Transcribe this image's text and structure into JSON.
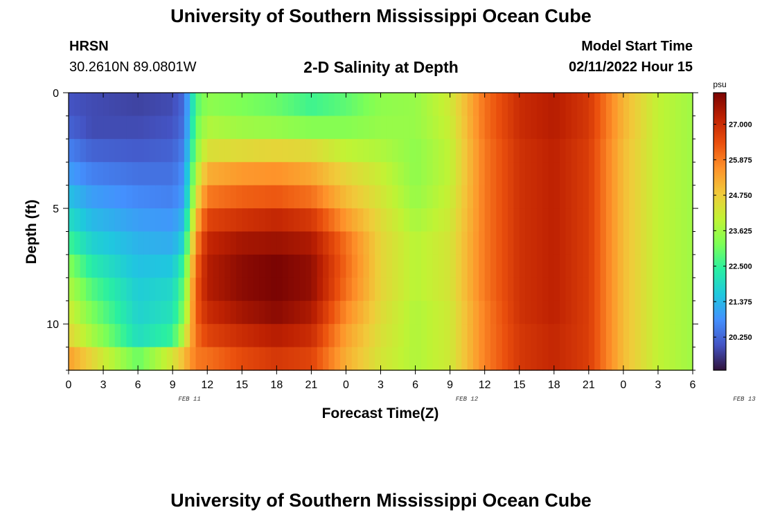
{
  "header": {
    "title": "University of Southern Mississippi Ocean Cube",
    "station": "HRSN",
    "coords": "30.2610N  89.0801W",
    "subtitle": "2-D Salinity at Depth",
    "start_label": "Model Start Time",
    "start_value": "02/11/2022 Hour 15",
    "footer_title": "University of Southern Mississippi Ocean Cube"
  },
  "chart_data": {
    "type": "heatmap",
    "title": "2-D Salinity at Depth",
    "xlabel": "Forecast Time(Z)",
    "ylabel": "Depth (ft)",
    "x_ticks": [
      "0",
      "3",
      "6",
      "9",
      "12",
      "15",
      "18",
      "21",
      "0",
      "3",
      "6",
      "9",
      "12",
      "15",
      "18",
      "21",
      "0",
      "3",
      "6"
    ],
    "x_hours": [
      0,
      54
    ],
    "date_labels": [
      {
        "text": "FEB 11",
        "hour": 11
      },
      {
        "text": "FEB 12",
        "hour": 35
      },
      {
        "text": "FEB 13",
        "hour": 59
      }
    ],
    "date_labels_hour_offset_note": "hour index relative to plot start",
    "y_ticks": [
      0,
      5,
      10
    ],
    "ylim": [
      0,
      12
    ],
    "colorbar": {
      "unit": "psu",
      "ticks": [
        "27.000",
        "25.875",
        "24.750",
        "23.625",
        "22.500",
        "21.375",
        "20.250"
      ],
      "min": 19.2,
      "max": 28.0,
      "colors": [
        "#30123b",
        "#4454c4",
        "#4490fe",
        "#1fc8de",
        "#29efa2",
        "#7dff56",
        "#c1f334",
        "#f1ca3a",
        "#fe922a",
        "#ea4f0d",
        "#be2102",
        "#7a0403"
      ]
    },
    "depth_levels_ft": [
      0.5,
      1.5,
      2.5,
      3.5,
      4.5,
      5.5,
      6.5,
      7.5,
      8.5,
      9.5,
      10.5,
      11.5
    ],
    "hour_profiles": [
      {
        "hour": 0,
        "values": [
          20.0,
          20.2,
          20.6,
          21.0,
          21.5,
          22.0,
          22.6,
          23.3,
          23.8,
          24.2,
          24.6,
          25.4
        ]
      },
      {
        "hour": 2,
        "values": [
          19.9,
          19.9,
          20.2,
          20.6,
          21.0,
          21.4,
          21.8,
          22.3,
          22.8,
          23.2,
          23.7,
          24.6
        ]
      },
      {
        "hour": 6,
        "values": [
          19.8,
          19.9,
          20.1,
          20.4,
          20.7,
          21.0,
          21.3,
          21.5,
          21.7,
          21.8,
          22.0,
          23.0
        ]
      },
      {
        "hour": 9,
        "values": [
          19.9,
          20.0,
          20.2,
          20.4,
          20.6,
          20.9,
          21.2,
          21.6,
          21.9,
          22.1,
          22.5,
          24.3
        ]
      },
      {
        "hour": 10,
        "values": [
          20.3,
          20.4,
          20.6,
          20.8,
          21.0,
          21.4,
          21.9,
          22.6,
          23.0,
          23.3,
          24.0,
          25.0
        ]
      },
      {
        "hour": 11,
        "values": [
          22.8,
          23.0,
          23.3,
          23.8,
          24.3,
          25.0,
          25.6,
          26.0,
          26.2,
          26.2,
          26.0,
          25.9
        ]
      },
      {
        "hour": 12,
        "values": [
          23.4,
          23.8,
          24.4,
          25.2,
          25.9,
          26.6,
          27.1,
          27.3,
          27.3,
          27.0,
          26.6,
          26.0
        ]
      },
      {
        "hour": 15,
        "values": [
          23.2,
          23.6,
          24.5,
          25.5,
          26.2,
          26.9,
          27.5,
          27.8,
          27.8,
          27.5,
          27.0,
          26.5
        ]
      },
      {
        "hour": 18,
        "values": [
          23.0,
          23.5,
          24.6,
          25.6,
          26.3,
          27.1,
          27.6,
          28.0,
          28.0,
          27.8,
          27.3,
          26.8
        ]
      },
      {
        "hour": 21,
        "values": [
          22.6,
          23.3,
          24.5,
          25.3,
          26.0,
          26.8,
          27.4,
          27.7,
          27.7,
          27.4,
          27.0,
          26.6
        ]
      },
      {
        "hour": 24,
        "values": [
          22.9,
          23.3,
          24.0,
          24.6,
          25.0,
          25.5,
          26.0,
          26.1,
          26.0,
          25.7,
          25.4,
          25.2
        ]
      },
      {
        "hour": 27,
        "values": [
          23.4,
          23.5,
          23.8,
          24.1,
          24.3,
          24.5,
          24.6,
          24.6,
          24.6,
          24.5,
          24.4,
          24.3
        ]
      },
      {
        "hour": 30,
        "values": [
          23.5,
          23.5,
          23.4,
          23.4,
          23.5,
          23.7,
          23.9,
          23.9,
          23.9,
          23.8,
          23.8,
          23.8
        ]
      },
      {
        "hour": 33,
        "values": [
          24.2,
          24.1,
          24.0,
          24.0,
          24.1,
          24.2,
          24.3,
          24.3,
          24.3,
          24.2,
          24.2,
          24.2
        ]
      },
      {
        "hour": 36,
        "values": [
          26.0,
          26.0,
          25.9,
          25.9,
          25.9,
          25.9,
          25.9,
          25.9,
          25.9,
          25.8,
          25.8,
          25.8
        ]
      },
      {
        "hour": 39,
        "values": [
          27.0,
          27.0,
          26.9,
          26.9,
          26.9,
          26.9,
          26.9,
          26.9,
          26.9,
          26.9,
          26.8,
          26.8
        ]
      },
      {
        "hour": 42,
        "values": [
          27.3,
          27.3,
          27.2,
          27.2,
          27.2,
          27.2,
          27.2,
          27.2,
          27.2,
          27.2,
          27.1,
          27.1
        ]
      },
      {
        "hour": 45,
        "values": [
          26.8,
          26.8,
          26.7,
          26.7,
          26.7,
          26.7,
          26.7,
          26.7,
          26.7,
          26.7,
          26.7,
          26.7
        ]
      },
      {
        "hour": 48,
        "values": [
          25.1,
          25.1,
          25.0,
          25.0,
          25.0,
          25.0,
          25.0,
          25.0,
          25.0,
          25.0,
          25.0,
          25.0
        ]
      },
      {
        "hour": 51,
        "values": [
          24.0,
          24.0,
          24.0,
          24.0,
          24.0,
          24.0,
          24.0,
          24.0,
          24.0,
          24.0,
          24.0,
          24.0
        ]
      },
      {
        "hour": 54,
        "values": [
          23.6,
          23.6,
          23.6,
          23.6,
          23.6,
          23.6,
          23.6,
          23.6,
          23.6,
          23.6,
          23.6,
          23.6
        ]
      }
    ]
  }
}
